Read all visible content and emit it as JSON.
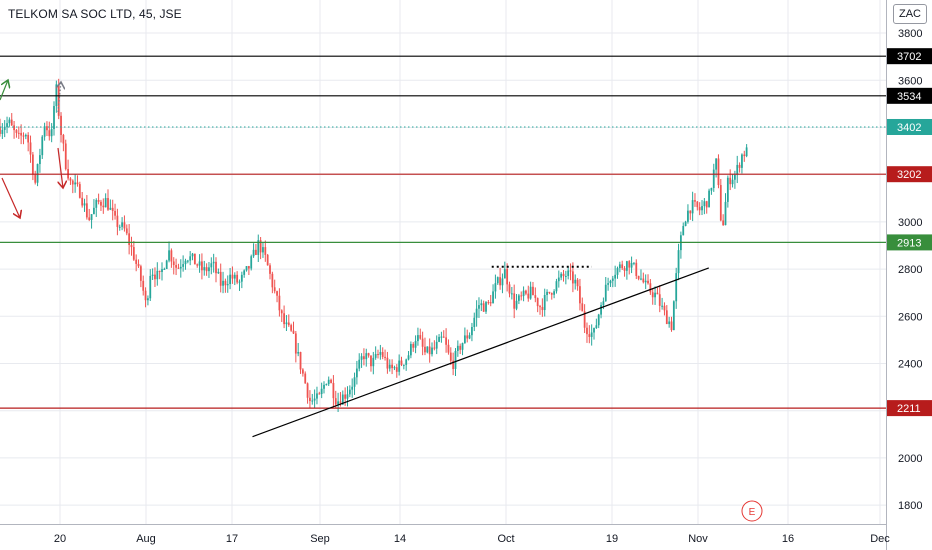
{
  "header": {
    "symbol_title": "TELKOM SA SOC LTD, 45, JSE",
    "currency": "ZAC"
  },
  "event_badge": {
    "label": "E",
    "color": "#e53935"
  },
  "chart_data": {
    "type": "candlestick",
    "title": "TELKOM SA SOC LTD, 45, JSE",
    "ylim": [
      1720,
      3940
    ],
    "y_ticks": [
      1800,
      2000,
      2200,
      2400,
      2600,
      2800,
      3000,
      3200,
      3400,
      3600,
      3800
    ],
    "x_tick_labels": [
      "20",
      "Aug",
      "17",
      "Sep",
      "14",
      "Oct",
      "19",
      "Nov",
      "16",
      "Dec"
    ],
    "grid": true,
    "up_color": "#26a69a",
    "down_color": "#ef5350",
    "last_price": 3402,
    "horizontal_levels": [
      {
        "value": 3702,
        "label": "3702",
        "color": "#000000"
      },
      {
        "value": 3534,
        "label": "3534",
        "color": "#000000"
      },
      {
        "value": 3402,
        "label": "3402",
        "color": "#26a69a",
        "style": "dotted"
      },
      {
        "value": 3202,
        "label": "3202",
        "color": "#b71c1c"
      },
      {
        "value": 2913,
        "label": "2913",
        "color": "#388e3c"
      },
      {
        "value": 2211,
        "label": "2211",
        "color": "#b71c1c"
      }
    ],
    "trendlines": [
      {
        "name": "ascending-support",
        "points": [
          [
            0.285,
            2090
          ],
          [
            0.8,
            2805
          ]
        ],
        "color": "#000000",
        "style": "solid"
      },
      {
        "name": "resistance-dotted",
        "points": [
          [
            0.555,
            2810
          ],
          [
            0.668,
            2810
          ]
        ],
        "color": "#000000",
        "style": "dotted"
      }
    ],
    "price_path": [
      [
        0.0,
        3400
      ],
      [
        0.01,
        3420
      ],
      [
        0.02,
        3350
      ],
      [
        0.03,
        3380
      ],
      [
        0.04,
        3160
      ],
      [
        0.05,
        3420
      ],
      [
        0.058,
        3360
      ],
      [
        0.063,
        3580
      ],
      [
        0.068,
        3400
      ],
      [
        0.074,
        3250
      ],
      [
        0.08,
        3160
      ],
      [
        0.09,
        3130
      ],
      [
        0.1,
        3010
      ],
      [
        0.11,
        3080
      ],
      [
        0.12,
        3090
      ],
      [
        0.13,
        3000
      ],
      [
        0.14,
        2970
      ],
      [
        0.15,
        2870
      ],
      [
        0.16,
        2740
      ],
      [
        0.165,
        2640
      ],
      [
        0.17,
        2800
      ],
      [
        0.18,
        2760
      ],
      [
        0.19,
        2880
      ],
      [
        0.2,
        2800
      ],
      [
        0.21,
        2860
      ],
      [
        0.22,
        2830
      ],
      [
        0.23,
        2790
      ],
      [
        0.24,
        2820
      ],
      [
        0.25,
        2730
      ],
      [
        0.26,
        2770
      ],
      [
        0.27,
        2740
      ],
      [
        0.28,
        2800
      ],
      [
        0.292,
        2910
      ],
      [
        0.3,
        2840
      ],
      [
        0.31,
        2700
      ],
      [
        0.32,
        2570
      ],
      [
        0.33,
        2520
      ],
      [
        0.34,
        2380
      ],
      [
        0.35,
        2240
      ],
      [
        0.36,
        2250
      ],
      [
        0.37,
        2350
      ],
      [
        0.38,
        2240
      ],
      [
        0.39,
        2270
      ],
      [
        0.4,
        2330
      ],
      [
        0.41,
        2440
      ],
      [
        0.42,
        2400
      ],
      [
        0.43,
        2450
      ],
      [
        0.44,
        2370
      ],
      [
        0.45,
        2390
      ],
      [
        0.46,
        2430
      ],
      [
        0.47,
        2520
      ],
      [
        0.48,
        2440
      ],
      [
        0.49,
        2460
      ],
      [
        0.5,
        2510
      ],
      [
        0.51,
        2390
      ],
      [
        0.52,
        2480
      ],
      [
        0.53,
        2530
      ],
      [
        0.54,
        2650
      ],
      [
        0.55,
        2640
      ],
      [
        0.56,
        2730
      ],
      [
        0.57,
        2790
      ],
      [
        0.58,
        2650
      ],
      [
        0.59,
        2680
      ],
      [
        0.6,
        2700
      ],
      [
        0.61,
        2640
      ],
      [
        0.62,
        2700
      ],
      [
        0.63,
        2750
      ],
      [
        0.64,
        2780
      ],
      [
        0.65,
        2740
      ],
      [
        0.66,
        2560
      ],
      [
        0.67,
        2520
      ],
      [
        0.68,
        2680
      ],
      [
        0.69,
        2780
      ],
      [
        0.7,
        2810
      ],
      [
        0.71,
        2830
      ],
      [
        0.72,
        2780
      ],
      [
        0.73,
        2720
      ],
      [
        0.74,
        2690
      ],
      [
        0.75,
        2610
      ],
      [
        0.758,
        2560
      ],
      [
        0.765,
        2840
      ],
      [
        0.772,
        3010
      ],
      [
        0.78,
        3070
      ],
      [
        0.79,
        3050
      ],
      [
        0.8,
        3100
      ],
      [
        0.808,
        3260
      ],
      [
        0.815,
        2960
      ],
      [
        0.822,
        3180
      ],
      [
        0.83,
        3200
      ],
      [
        0.838,
        3290
      ],
      [
        0.845,
        3300
      ]
    ]
  }
}
